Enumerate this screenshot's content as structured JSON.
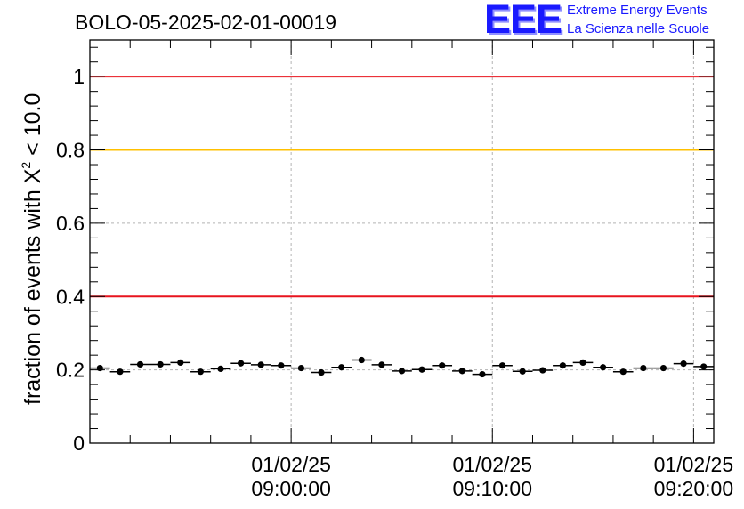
{
  "chart_data": {
    "type": "scatter",
    "title": "BOLO-05-2025-02-01-00019",
    "ylabel_prefix": "fraction of events with ",
    "ylabel_symbol": "X",
    "ylabel_sup": "2",
    "ylabel_suffix": " < 10.0",
    "ylim": [
      0,
      1.1
    ],
    "yticks": [
      "0",
      "0.2",
      "0.4",
      "0.6",
      "0.8",
      "1"
    ],
    "xlim": [
      "08:50:00",
      "09:21:00"
    ],
    "xticks": [
      {
        "date": "01/02/25",
        "time": "09:00:00",
        "value": "09:00:00"
      },
      {
        "date": "01/02/25",
        "time": "09:10:00",
        "value": "09:10:00"
      },
      {
        "date": "01/02/25",
        "time": "09:20:00",
        "value": "09:20:00"
      }
    ],
    "grid": true,
    "bin_width_minutes": 1,
    "x": [
      "08:50:00",
      "08:51:00",
      "08:52:00",
      "08:53:00",
      "08:54:00",
      "08:55:00",
      "08:56:00",
      "08:57:00",
      "08:58:00",
      "08:59:00",
      "09:00:00",
      "09:01:00",
      "09:02:00",
      "09:03:00",
      "09:04:00",
      "09:05:00",
      "09:06:00",
      "09:07:00",
      "09:08:00",
      "09:09:00",
      "09:10:00",
      "09:11:00",
      "09:12:00",
      "09:13:00",
      "09:14:00",
      "09:15:00",
      "09:16:00",
      "09:17:00",
      "09:18:00",
      "09:19:00",
      "09:20:00"
    ],
    "values": [
      0.205,
      0.195,
      0.215,
      0.215,
      0.22,
      0.195,
      0.203,
      0.218,
      0.214,
      0.212,
      0.205,
      0.193,
      0.207,
      0.227,
      0.214,
      0.197,
      0.201,
      0.212,
      0.197,
      0.188,
      0.212,
      0.196,
      0.199,
      0.212,
      0.22,
      0.207,
      0.195,
      0.205,
      0.205,
      0.217,
      0.209
    ],
    "reference_lines": [
      {
        "y": 1.0,
        "color": "#e8141e"
      },
      {
        "y": 0.8,
        "color": "#ffc000"
      },
      {
        "y": 0.4,
        "color": "#e8141e"
      }
    ],
    "marker_color": "#000000"
  },
  "logo": {
    "mark": "EEE",
    "line1": "Extreme Energy Events",
    "line2": "La Scienza nelle Scuole",
    "color": "#1a1aff"
  }
}
